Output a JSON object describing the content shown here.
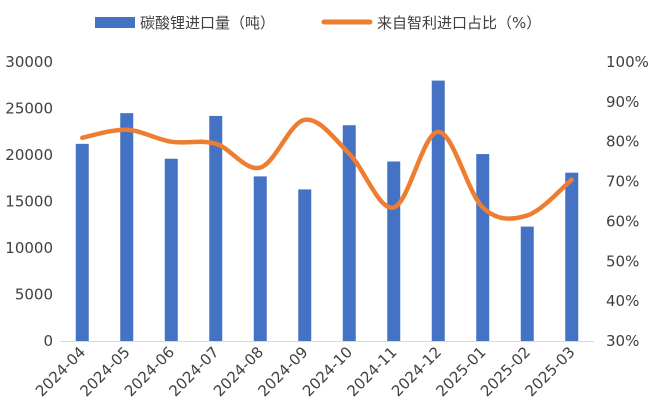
{
  "chart_data": {
    "type": "bar+line",
    "categories": [
      "2024-04",
      "2024-05",
      "2024-06",
      "2024-07",
      "2024-08",
      "2024-09",
      "2024-10",
      "2024-11",
      "2024-12",
      "2025-01",
      "2025-02",
      "2025-03"
    ],
    "series": [
      {
        "name": "碳酸锂进口量（吨）",
        "type": "bar",
        "axis": "left",
        "color": "#4472C4",
        "values": [
          21200,
          24500,
          19600,
          24200,
          17700,
          16300,
          23200,
          19300,
          28000,
          20100,
          12300,
          18100
        ]
      },
      {
        "name": "来自智利进口占比（%）",
        "type": "line",
        "axis": "right",
        "color": "#ED7D31",
        "values": [
          81,
          83,
          80,
          79.5,
          73.5,
          85.5,
          77,
          63.5,
          82.5,
          63.5,
          61.5,
          70.5
        ]
      }
    ],
    "y_left": {
      "min": 0,
      "max": 30000,
      "ticks": [
        "0",
        "5000",
        "10000",
        "15000",
        "20000",
        "25000",
        "30000"
      ]
    },
    "y_right": {
      "min": 30,
      "max": 100,
      "ticks": [
        "30%",
        "40%",
        "50%",
        "60%",
        "70%",
        "80%",
        "90%",
        "100%"
      ]
    },
    "legend": "top",
    "grid": false
  }
}
